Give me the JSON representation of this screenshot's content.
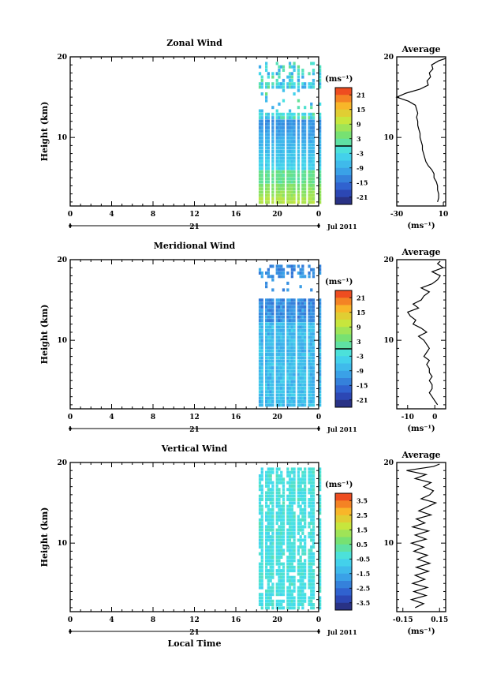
{
  "chart_data": [
    {
      "type": "heatmap",
      "title": "Zonal Wind",
      "ylabel": "Height (km)",
      "xlim": [
        0,
        24
      ],
      "ylim": [
        1.5,
        20
      ],
      "xticks": [
        "0",
        "4",
        "8",
        "12",
        "16",
        "20",
        "0"
      ],
      "yticks": [
        "10",
        "20"
      ],
      "date_day": "21",
      "date_month": "Jul 2011",
      "colorbar": {
        "unit": "(ms⁻¹)",
        "ticks": [
          "21",
          "15",
          "9",
          "3",
          "-3",
          "-9",
          "-15",
          "-21"
        ],
        "min": -24,
        "max": 24,
        "zero_line": true
      },
      "data_window": [
        18.2,
        24.0
      ],
      "profile": {
        "title": "Average",
        "xlabel": "(ms⁻¹)",
        "xlim": [
          -30,
          12
        ],
        "xticks": [
          "-30",
          "10"
        ],
        "yticks": [
          "10",
          "20"
        ],
        "points": [
          [
            5,
            2
          ],
          [
            6,
            2.5
          ],
          [
            6,
            3
          ],
          [
            5,
            3.5
          ],
          [
            5,
            4
          ],
          [
            4,
            4.5
          ],
          [
            2,
            5
          ],
          [
            2,
            5.5
          ],
          [
            0,
            6
          ],
          [
            -3,
            6.5
          ],
          [
            -5,
            7
          ],
          [
            -6,
            7.5
          ],
          [
            -7,
            8
          ],
          [
            -8,
            8.5
          ],
          [
            -8,
            9
          ],
          [
            -9,
            9.5
          ],
          [
            -10,
            10
          ],
          [
            -10,
            10.5
          ],
          [
            -11,
            11
          ],
          [
            -12,
            11.5
          ],
          [
            -12,
            12
          ],
          [
            -13,
            12.5
          ],
          [
            -12,
            13
          ],
          [
            -13,
            13.5
          ],
          [
            -14,
            14
          ],
          [
            -20,
            14.5
          ],
          [
            -30,
            15
          ],
          [
            -22,
            15.5
          ],
          [
            -10,
            16
          ],
          [
            -3,
            16.5
          ],
          [
            -4,
            17
          ],
          [
            -1,
            17.5
          ],
          [
            -2,
            18
          ],
          [
            1,
            18.5
          ],
          [
            0,
            19
          ],
          [
            6,
            19.5
          ],
          [
            12,
            19.8
          ]
        ]
      }
    },
    {
      "type": "heatmap",
      "title": "Meridional Wind",
      "ylabel": "Height (km)",
      "xlim": [
        0,
        24
      ],
      "ylim": [
        1.5,
        20
      ],
      "xticks": [
        "0",
        "4",
        "8",
        "12",
        "16",
        "20",
        "0"
      ],
      "yticks": [
        "10",
        "20"
      ],
      "date_day": "21",
      "date_month": "Jul 2011",
      "colorbar": {
        "unit": "(ms⁻¹)",
        "ticks": [
          "21",
          "15",
          "9",
          "3",
          "-3",
          "-9",
          "-15",
          "-21"
        ],
        "min": -24,
        "max": 24,
        "zero_line": true
      },
      "data_window": [
        18.2,
        24.0
      ],
      "profile": {
        "title": "Average",
        "xlabel": "(ms⁻¹)",
        "xlim": [
          -14,
          4
        ],
        "xticks": [
          "-10",
          "0"
        ],
        "yticks": [
          "10",
          "20"
        ],
        "points": [
          [
            1,
            2
          ],
          [
            0,
            2.5
          ],
          [
            -1,
            3
          ],
          [
            -2,
            3.5
          ],
          [
            -1,
            4
          ],
          [
            -1,
            4.5
          ],
          [
            -2,
            5
          ],
          [
            -1,
            5.5
          ],
          [
            -2,
            6
          ],
          [
            -2,
            6.5
          ],
          [
            -3,
            7
          ],
          [
            -2,
            7.5
          ],
          [
            -4,
            8
          ],
          [
            -3,
            8.5
          ],
          [
            -2,
            9
          ],
          [
            -3,
            9.5
          ],
          [
            -4,
            10
          ],
          [
            -6,
            10.5
          ],
          [
            -3,
            11
          ],
          [
            -5,
            11.5
          ],
          [
            -8,
            12
          ],
          [
            -7,
            12.5
          ],
          [
            -9,
            13
          ],
          [
            -10,
            13.5
          ],
          [
            -6,
            14
          ],
          [
            -8,
            14.5
          ],
          [
            -5,
            15
          ],
          [
            -4,
            15.5
          ],
          [
            -2,
            16
          ],
          [
            -5,
            16.5
          ],
          [
            -1,
            17
          ],
          [
            1,
            17.5
          ],
          [
            2,
            18
          ],
          [
            -1,
            18.5
          ],
          [
            3,
            19
          ],
          [
            1,
            19.5
          ],
          [
            2,
            19.8
          ]
        ]
      }
    },
    {
      "type": "heatmap",
      "title": "Vertical Wind",
      "ylabel": "Height (km)",
      "xlabel": "Local Time",
      "xlim": [
        0,
        24
      ],
      "ylim": [
        1.5,
        20
      ],
      "xticks": [
        "0",
        "4",
        "8",
        "12",
        "16",
        "20",
        "0"
      ],
      "yticks": [
        "10",
        "20"
      ],
      "date_day": "21",
      "date_month": "Jul 2011",
      "colorbar": {
        "unit": "(ms⁻¹)",
        "ticks": [
          "3.5",
          "2.5",
          "1.5",
          "0.5",
          "-0.5",
          "-1.5",
          "-2.5",
          "-3.5"
        ],
        "min": -4,
        "max": 4,
        "zero_line": false
      },
      "data_window": [
        18.2,
        24.0
      ],
      "profile": {
        "title": "Average",
        "xlabel": "(ms⁻¹)",
        "xlim": [
          -0.2,
          0.2
        ],
        "xticks": [
          "-0.15",
          "0.15"
        ],
        "yticks": [
          "10",
          "20"
        ],
        "points": [
          [
            -0.05,
            2
          ],
          [
            0.02,
            2.5
          ],
          [
            -0.08,
            3
          ],
          [
            0.04,
            3.5
          ],
          [
            -0.06,
            4
          ],
          [
            0.05,
            4.5
          ],
          [
            -0.07,
            5
          ],
          [
            0.03,
            5.5
          ],
          [
            -0.05,
            6
          ],
          [
            0.06,
            6.5
          ],
          [
            -0.04,
            7
          ],
          [
            0.07,
            7.5
          ],
          [
            -0.03,
            8
          ],
          [
            0.05,
            8.5
          ],
          [
            -0.06,
            9
          ],
          [
            0.02,
            9.5
          ],
          [
            -0.08,
            10
          ],
          [
            0.04,
            10.5
          ],
          [
            -0.05,
            11
          ],
          [
            0.06,
            11.5
          ],
          [
            -0.07,
            12
          ],
          [
            0.03,
            12.5
          ],
          [
            -0.04,
            13
          ],
          [
            0.08,
            13.5
          ],
          [
            -0.02,
            14
          ],
          [
            0.05,
            14.5
          ],
          [
            0.12,
            15
          ],
          [
            0.0,
            15.5
          ],
          [
            0.07,
            16
          ],
          [
            0.1,
            16.5
          ],
          [
            0.02,
            17
          ],
          [
            0.08,
            17.5
          ],
          [
            -0.05,
            18
          ],
          [
            0.04,
            18.5
          ],
          [
            -0.12,
            19
          ],
          [
            0.1,
            19.5
          ],
          [
            0.15,
            19.8
          ]
        ]
      }
    }
  ]
}
